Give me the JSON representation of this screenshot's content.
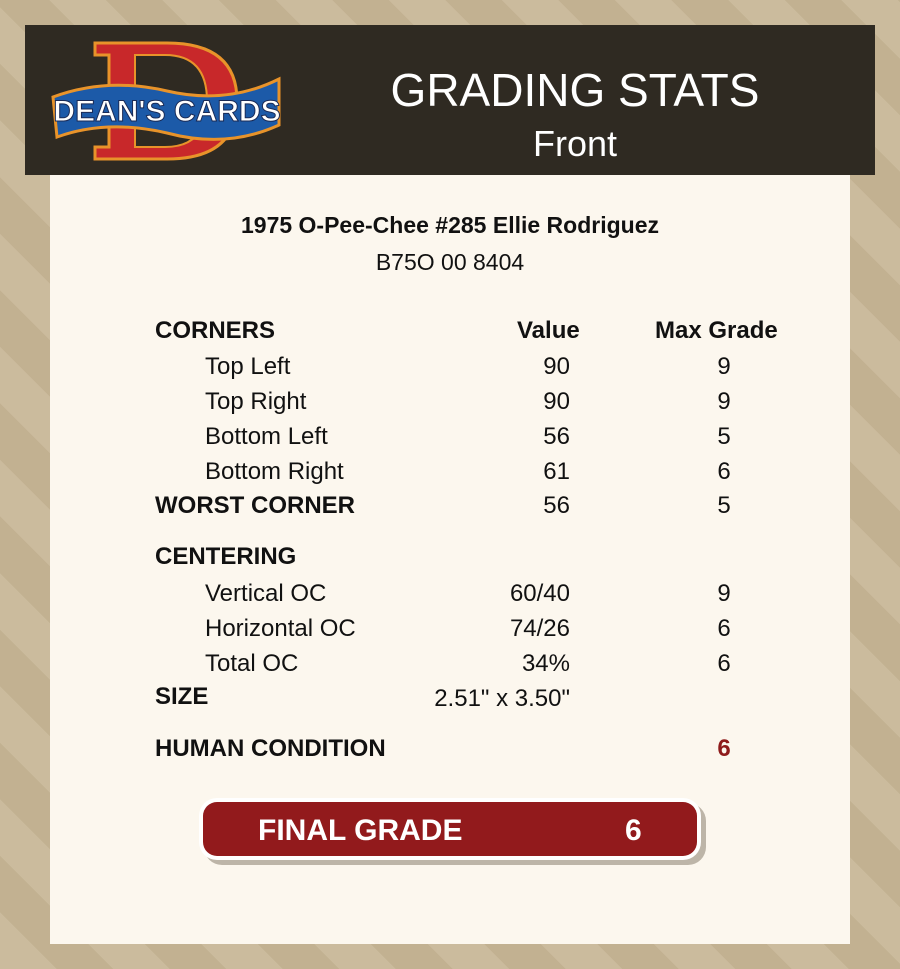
{
  "logo": {
    "text": "DEAN'S CARDS",
    "letter": "D"
  },
  "header": {
    "title": "GRADING STATS",
    "subtitle": "Front"
  },
  "card": {
    "name": "1975 O-Pee-Chee #285 Ellie Rodriguez",
    "id": "B75O 00 8404"
  },
  "corners": {
    "heading": "CORNERS",
    "value_header": "Value",
    "max_header": "Max Grade",
    "rows": [
      {
        "label": "Top Left",
        "value": "90",
        "max": "9"
      },
      {
        "label": "Top Right",
        "value": "90",
        "max": "9"
      },
      {
        "label": "Bottom Left",
        "value": "56",
        "max": "5"
      },
      {
        "label": "Bottom Right",
        "value": "61",
        "max": "6"
      }
    ],
    "worst": {
      "label": "WORST CORNER",
      "value": "56",
      "max": "5"
    }
  },
  "centering": {
    "heading": "CENTERING",
    "rows": [
      {
        "label": "Vertical OC",
        "value": "60/40",
        "max": "9"
      },
      {
        "label": "Horizontal OC",
        "value": "74/26",
        "max": "6"
      },
      {
        "label": "Total OC",
        "value": "34%",
        "max": "6"
      }
    ]
  },
  "size": {
    "label": "SIZE",
    "value": "2.51\" x 3.50\""
  },
  "human": {
    "label": "HUMAN CONDITION",
    "value": "6"
  },
  "final": {
    "label": "FINAL GRADE",
    "value": "6"
  },
  "colors": {
    "accent": "#921a1c",
    "header_bg": "#2f2a22",
    "card_bg": "#fcf7ee"
  }
}
